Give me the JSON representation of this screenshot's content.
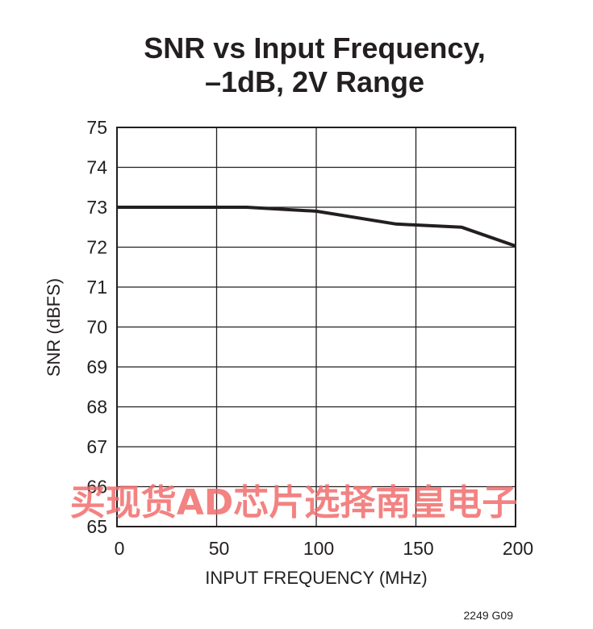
{
  "chart_data": {
    "type": "line",
    "title_line1": "SNR vs Input Frequency,",
    "title_line2": "–1dB, 2V Range",
    "xlabel": "INPUT FREQUENCY (MHz)",
    "ylabel": "SNR (dBFS)",
    "xlim": [
      0,
      200
    ],
    "ylim": [
      65,
      75
    ],
    "xticks": [
      0,
      50,
      100,
      150,
      200
    ],
    "yticks": [
      65,
      66,
      67,
      68,
      69,
      70,
      71,
      72,
      73,
      74,
      75
    ],
    "grid": true,
    "series": [
      {
        "x": [
          0,
          65,
          100,
          140,
          173,
          200
        ],
        "y": [
          73.0,
          73.0,
          72.9,
          72.58,
          72.5,
          72.03
        ]
      }
    ],
    "figure_id": "2249 G09"
  },
  "watermark": "买现货AD芯片选择南皇电子",
  "colors": {
    "ink": "#231f20",
    "watermark": "#f26d6d"
  }
}
